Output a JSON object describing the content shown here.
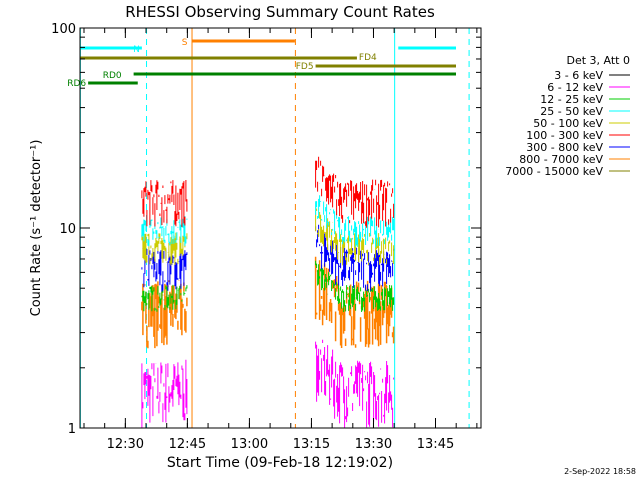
{
  "chart_data": {
    "type": "line",
    "title": "RHESSI Observing Summary Count Rates",
    "xlabel": "Start Time (09-Feb-18 12:19:02)",
    "ylabel": "Count Rate (s⁻¹ detector⁻¹)",
    "x_ticks": [
      "12:30",
      "12:45",
      "13:00",
      "13:15",
      "13:30",
      "13:45"
    ],
    "y_ticks": [
      "1",
      "10",
      "100"
    ],
    "ylim": [
      1,
      100
    ],
    "y_scale": "log",
    "legend_title": "Det 3, Att 0",
    "legend_placement": "right",
    "series": [
      {
        "name": "3 - 6 keV",
        "color": "#000000"
      },
      {
        "name": "6 - 12 keV",
        "color": "#ff00ff"
      },
      {
        "name": "12 - 25 keV",
        "color": "#00cc00"
      },
      {
        "name": "25 - 50 keV",
        "color": "#00ffff"
      },
      {
        "name": "50 - 100 keV",
        "color": "#cccc00"
      },
      {
        "name": "100 - 300 keV",
        "color": "#ff0000"
      },
      {
        "name": "300 - 800 keV",
        "color": "#0000ff"
      },
      {
        "name": "800 - 7000 keV",
        "color": "#ff8000"
      },
      {
        "name": "7000 - 15000 keV",
        "color": "#808000"
      }
    ],
    "data_intervals": [
      {
        "start": "12:34",
        "end": "12:45"
      },
      {
        "start": "13:16",
        "end": "13:35"
      }
    ],
    "flag_bars": [
      {
        "label": "N",
        "color": "#00ffff",
        "segments": [
          [
            "12:19",
            "12:34"
          ],
          [
            "13:36",
            "13:53"
          ]
        ]
      },
      {
        "label": "S",
        "color": "#ff8000",
        "segments": [
          [
            "12:46",
            "13:11"
          ]
        ]
      },
      {
        "label": "FD4",
        "color": "#808000",
        "segments": [
          [
            "12:19",
            "13:26"
          ]
        ]
      },
      {
        "label": "FD5",
        "color": "#808000",
        "segments": [
          [
            "13:16",
            "13:53"
          ]
        ]
      },
      {
        "label": "RD0",
        "color": "#008000",
        "segments": [
          [
            "12:32",
            "13:53"
          ]
        ]
      },
      {
        "label": "RD6",
        "color": "#008000",
        "segments": [
          [
            "12:21",
            "12:33"
          ]
        ]
      }
    ],
    "vertical_markers": [
      {
        "time": "12:19",
        "color": "#00ffff",
        "style": "solid"
      },
      {
        "time": "12:35",
        "color": "#00ffff",
        "style": "dashed"
      },
      {
        "time": "12:46",
        "color": "#ff8000",
        "style": "solid"
      },
      {
        "time": "13:11",
        "color": "#ff8000",
        "style": "dashed"
      },
      {
        "time": "13:35",
        "color": "#00ffff",
        "style": "solid"
      },
      {
        "time": "13:53",
        "color": "#00ffff",
        "style": "dashed"
      }
    ]
  },
  "footer": {
    "date": "2-Sep-2022 18:58"
  }
}
